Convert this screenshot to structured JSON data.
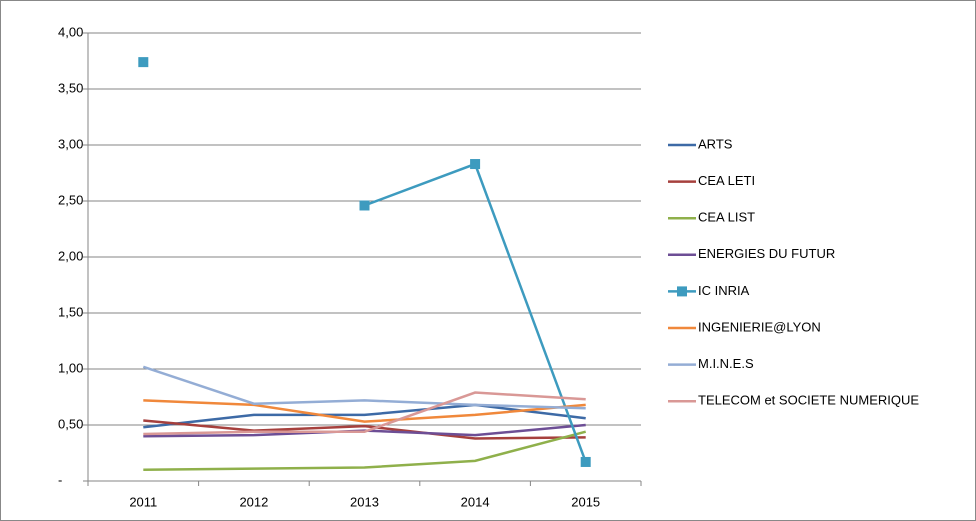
{
  "chart_data": {
    "type": "line",
    "categories": [
      "2011",
      "2012",
      "2013",
      "2014",
      "2015"
    ],
    "series": [
      {
        "name": "ARTS",
        "color": "#3d6aa6",
        "values": [
          0.48,
          0.59,
          0.59,
          0.68,
          0.56
        ]
      },
      {
        "name": "CEA LETI",
        "color": "#a6403d",
        "values": [
          0.54,
          0.45,
          0.49,
          0.38,
          0.39
        ]
      },
      {
        "name": "CEA LIST",
        "color": "#8fb04b",
        "values": [
          0.1,
          0.11,
          0.12,
          0.18,
          0.44
        ]
      },
      {
        "name": "ENERGIES DU FUTUR",
        "color": "#6d4e95",
        "values": [
          0.4,
          0.41,
          0.45,
          0.41,
          0.5
        ]
      },
      {
        "name": "IC INRIA",
        "color": "#3d9bbf",
        "marker": "square",
        "values": [
          3.74,
          null,
          2.46,
          2.83,
          0.17
        ]
      },
      {
        "name": "INGENIERIE@LYON",
        "color": "#f0883b",
        "values": [
          0.72,
          0.68,
          0.53,
          0.59,
          0.68
        ]
      },
      {
        "name": "M.I.N.E.S",
        "color": "#94add5",
        "values": [
          1.02,
          0.69,
          0.72,
          0.68,
          0.65
        ]
      },
      {
        "name": "TELECOM et SOCIETE NUMERIQUE",
        "color": "#d99896",
        "values": [
          0.42,
          0.44,
          0.44,
          0.79,
          0.73
        ]
      }
    ],
    "ylim": [
      0,
      4
    ],
    "yticks": [
      {
        "value": 0,
        "label": "-"
      },
      {
        "value": 0.5,
        "label": "0,50"
      },
      {
        "value": 1,
        "label": "1,00"
      },
      {
        "value": 1.5,
        "label": "1,50"
      },
      {
        "value": 2,
        "label": "2,00"
      },
      {
        "value": 2.5,
        "label": "2,50"
      },
      {
        "value": 3,
        "label": "3,00"
      },
      {
        "value": 3.5,
        "label": "3,50"
      },
      {
        "value": 4,
        "label": "4,00"
      }
    ],
    "grid": true,
    "legend": "right"
  }
}
